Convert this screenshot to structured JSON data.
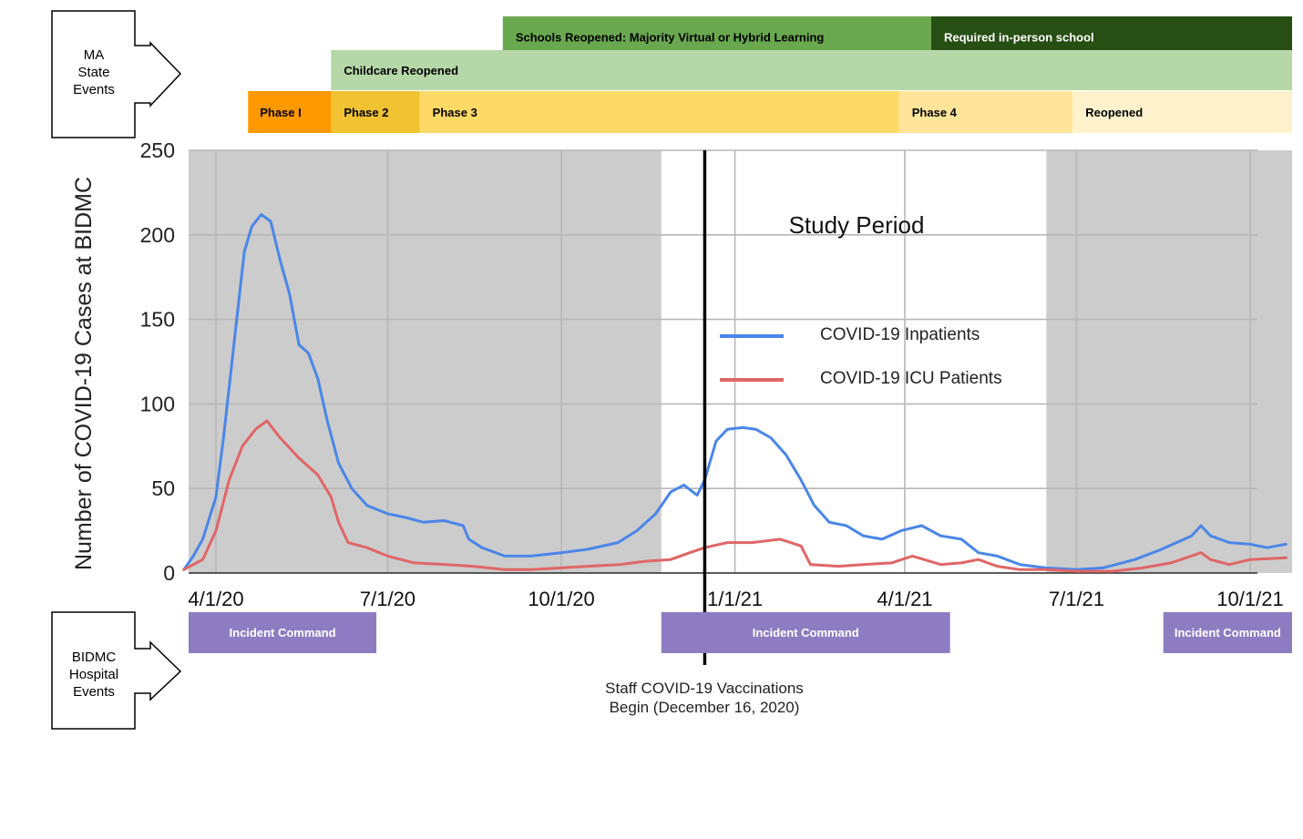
{
  "state_events": {
    "label_lines": [
      "MA",
      "State",
      "Events"
    ],
    "rows": [
      [
        {
          "label": "Schools Reopened: Majority Virtual or Hybrid Learning",
          "start": "2020-08-31",
          "end": "2021-04-15",
          "color": "#6aa84f",
          "text_color": "#000000"
        },
        {
          "label": "Required in-person school",
          "start": "2021-04-15",
          "end": "2021-10-31",
          "color": "#274e13",
          "text_color": "#ffffff"
        }
      ],
      [
        {
          "label": "Childcare Reopened",
          "start": "2020-06-01",
          "end": "2021-10-31",
          "color": "#b6d7a8",
          "text_color": "#000000"
        }
      ],
      [
        {
          "label": "Phase I",
          "start": "2020-04-18",
          "end": "2020-06-01",
          "color": "#ff9900",
          "text_color": "#000000"
        },
        {
          "label": "Phase 2",
          "start": "2020-06-01",
          "end": "2020-07-18",
          "color": "#f1c232",
          "text_color": "#000000"
        },
        {
          "label": "Phase 3",
          "start": "2020-07-18",
          "end": "2021-03-29",
          "color": "#ffd966",
          "text_color": "#000000"
        },
        {
          "label": "Phase 4",
          "start": "2021-03-29",
          "end": "2021-06-29",
          "color": "#ffe599",
          "text_color": "#000000"
        },
        {
          "label": "Reopened",
          "start": "2021-06-29",
          "end": "2021-10-31",
          "color": "#fff2cc",
          "text_color": "#000000"
        }
      ]
    ]
  },
  "hospital_events": {
    "label_lines": [
      "BIDMC",
      "Hospital",
      "Events"
    ],
    "color": "#8e7cc3",
    "bars": [
      {
        "label": "Incident Command",
        "start": "2020-03-16",
        "end": "2020-06-25"
      },
      {
        "label": "Incident Command",
        "start": "2020-11-23",
        "end": "2021-04-25"
      },
      {
        "label": "Incident Command",
        "start": "2021-08-16",
        "end": "2021-11-11"
      }
    ]
  },
  "annotations": {
    "study_period": "Study Period",
    "vaccination_lines": [
      "Staff COVID-19 Vaccinations",
      "Begin (December 16, 2020)"
    ],
    "vaccination_date": "2020-12-16"
  },
  "chart_data": {
    "type": "line",
    "ylabel": "Number of COVID-19 Cases at BIDMC",
    "xlabel": "",
    "ylim": [
      0,
      250
    ],
    "xlim": [
      "2020-03-15",
      "2021-10-31"
    ],
    "y_ticks": [
      0,
      50,
      100,
      150,
      200,
      250
    ],
    "x_ticks": [
      {
        "label": "4/1/20",
        "date": "2020-04-01"
      },
      {
        "label": "7/1/20",
        "date": "2020-07-01"
      },
      {
        "label": "10/1/20",
        "date": "2020-10-01"
      },
      {
        "label": "1/1/21",
        "date": "2021-01-01"
      },
      {
        "label": "4/1/21",
        "date": "2021-04-01"
      },
      {
        "label": "7/1/21",
        "date": "2021-07-01"
      },
      {
        "label": "10/1/21",
        "date": "2021-10-01"
      }
    ],
    "shaded_periods": [
      {
        "start": "2020-03-15",
        "end": "2020-11-23"
      },
      {
        "start": "2021-06-15",
        "end": "2021-10-31"
      }
    ],
    "grid": true,
    "legend_position": "center-right",
    "series": [
      {
        "name": "COVID-19 Inpatients",
        "color": "#4a86e8",
        "points": [
          [
            "2020-03-15",
            2
          ],
          [
            "2020-03-20",
            10
          ],
          [
            "2020-03-25",
            20
          ],
          [
            "2020-04-01",
            45
          ],
          [
            "2020-04-05",
            80
          ],
          [
            "2020-04-08",
            110
          ],
          [
            "2020-04-12",
            150
          ],
          [
            "2020-04-16",
            190
          ],
          [
            "2020-04-20",
            205
          ],
          [
            "2020-04-25",
            212
          ],
          [
            "2020-04-30",
            208
          ],
          [
            "2020-05-05",
            185
          ],
          [
            "2020-05-10",
            165
          ],
          [
            "2020-05-15",
            135
          ],
          [
            "2020-05-20",
            130
          ],
          [
            "2020-05-25",
            115
          ],
          [
            "2020-05-30",
            90
          ],
          [
            "2020-06-05",
            65
          ],
          [
            "2020-06-12",
            50
          ],
          [
            "2020-06-20",
            40
          ],
          [
            "2020-07-01",
            35
          ],
          [
            "2020-07-10",
            33
          ],
          [
            "2020-07-20",
            30
          ],
          [
            "2020-07-31",
            31
          ],
          [
            "2020-08-10",
            28
          ],
          [
            "2020-08-13",
            20
          ],
          [
            "2020-08-20",
            15
          ],
          [
            "2020-09-01",
            10
          ],
          [
            "2020-09-15",
            10
          ],
          [
            "2020-10-01",
            12
          ],
          [
            "2020-10-15",
            14
          ],
          [
            "2020-10-31",
            18
          ],
          [
            "2020-11-10",
            25
          ],
          [
            "2020-11-20",
            35
          ],
          [
            "2020-11-28",
            48
          ],
          [
            "2020-12-05",
            52
          ],
          [
            "2020-12-12",
            46
          ],
          [
            "2020-12-16",
            55
          ],
          [
            "2020-12-22",
            78
          ],
          [
            "2020-12-28",
            85
          ],
          [
            "2021-01-05",
            86
          ],
          [
            "2021-01-12",
            85
          ],
          [
            "2021-01-20",
            80
          ],
          [
            "2021-01-28",
            70
          ],
          [
            "2021-02-05",
            55
          ],
          [
            "2021-02-12",
            40
          ],
          [
            "2021-02-20",
            30
          ],
          [
            "2021-03-01",
            28
          ],
          [
            "2021-03-10",
            22
          ],
          [
            "2021-03-20",
            20
          ],
          [
            "2021-03-30",
            25
          ],
          [
            "2021-04-10",
            28
          ],
          [
            "2021-04-20",
            22
          ],
          [
            "2021-05-01",
            20
          ],
          [
            "2021-05-10",
            12
          ],
          [
            "2021-05-20",
            10
          ],
          [
            "2021-06-01",
            5
          ],
          [
            "2021-06-15",
            3
          ],
          [
            "2021-07-01",
            2
          ],
          [
            "2021-07-15",
            3
          ],
          [
            "2021-08-01",
            8
          ],
          [
            "2021-08-15",
            14
          ],
          [
            "2021-08-31",
            22
          ],
          [
            "2021-09-05",
            28
          ],
          [
            "2021-09-10",
            22
          ],
          [
            "2021-09-20",
            18
          ],
          [
            "2021-10-01",
            17
          ],
          [
            "2021-10-10",
            15
          ],
          [
            "2021-10-20",
            17
          ]
        ]
      },
      {
        "name": "COVID-19 ICU Patients",
        "color": "#e06666",
        "points": [
          [
            "2020-03-15",
            2
          ],
          [
            "2020-03-25",
            8
          ],
          [
            "2020-04-01",
            25
          ],
          [
            "2020-04-08",
            55
          ],
          [
            "2020-04-15",
            75
          ],
          [
            "2020-04-22",
            85
          ],
          [
            "2020-04-28",
            90
          ],
          [
            "2020-05-05",
            80
          ],
          [
            "2020-05-15",
            68
          ],
          [
            "2020-05-25",
            58
          ],
          [
            "2020-06-01",
            45
          ],
          [
            "2020-06-05",
            30
          ],
          [
            "2020-06-10",
            18
          ],
          [
            "2020-06-20",
            15
          ],
          [
            "2020-07-01",
            10
          ],
          [
            "2020-07-15",
            6
          ],
          [
            "2020-08-01",
            5
          ],
          [
            "2020-08-15",
            4
          ],
          [
            "2020-09-01",
            2
          ],
          [
            "2020-09-15",
            2
          ],
          [
            "2020-10-01",
            3
          ],
          [
            "2020-10-15",
            4
          ],
          [
            "2020-11-01",
            5
          ],
          [
            "2020-11-15",
            7
          ],
          [
            "2020-11-28",
            8
          ],
          [
            "2020-12-08",
            12
          ],
          [
            "2020-12-16",
            15
          ],
          [
            "2020-12-28",
            18
          ],
          [
            "2021-01-10",
            18
          ],
          [
            "2021-01-25",
            20
          ],
          [
            "2021-02-05",
            16
          ],
          [
            "2021-02-10",
            5
          ],
          [
            "2021-02-25",
            4
          ],
          [
            "2021-03-10",
            5
          ],
          [
            "2021-03-25",
            6
          ],
          [
            "2021-04-05",
            10
          ],
          [
            "2021-04-20",
            5
          ],
          [
            "2021-05-01",
            6
          ],
          [
            "2021-05-10",
            8
          ],
          [
            "2021-05-20",
            4
          ],
          [
            "2021-06-01",
            2
          ],
          [
            "2021-06-15",
            2
          ],
          [
            "2021-07-01",
            1
          ],
          [
            "2021-07-20",
            1
          ],
          [
            "2021-08-05",
            3
          ],
          [
            "2021-08-20",
            6
          ],
          [
            "2021-09-05",
            12
          ],
          [
            "2021-09-10",
            8
          ],
          [
            "2021-09-20",
            5
          ],
          [
            "2021-10-01",
            8
          ],
          [
            "2021-10-20",
            9
          ]
        ]
      }
    ]
  }
}
